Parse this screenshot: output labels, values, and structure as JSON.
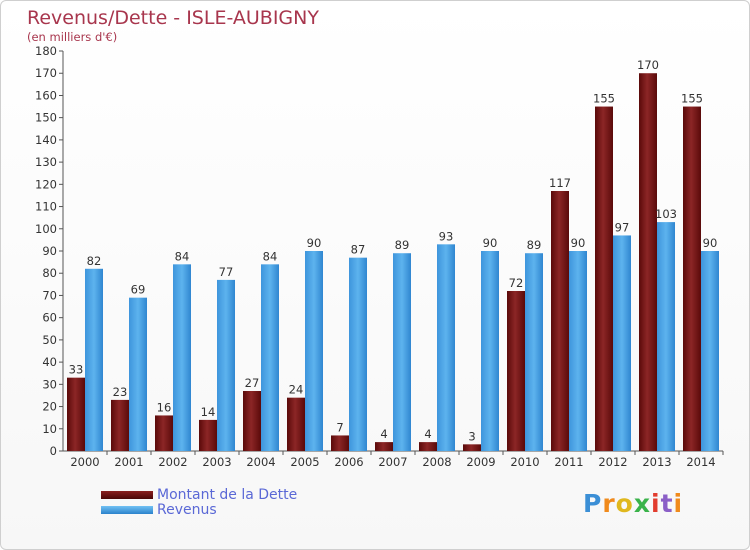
{
  "header": {
    "title": "Revenus/Dette - ISLE-AUBIGNY",
    "subtitle": "(en milliers d'€)"
  },
  "legend": {
    "debt_label": "Montant de la Dette",
    "revenue_label": "Revenus"
  },
  "logo": {
    "letters": [
      "P",
      "r",
      "o",
      "x",
      "i",
      "t",
      "i"
    ]
  },
  "colors": {
    "debt_top": "#8a1f1f",
    "debt_bottom": "#4a0606",
    "revenue_top": "#72c1f4",
    "revenue_bottom": "#2b82cc",
    "title": "#a8364d",
    "legend_text": "#5a68d6"
  },
  "chart_data": {
    "type": "bar",
    "title": "Revenus/Dette - ISLE-AUBIGNY",
    "subtitle": "(en milliers d'€)",
    "categories": [
      "2000",
      "2001",
      "2002",
      "2003",
      "2004",
      "2005",
      "2006",
      "2007",
      "2008",
      "2009",
      "2010",
      "2011",
      "2012",
      "2013",
      "2014"
    ],
    "series": [
      {
        "name": "Montant de la Dette",
        "values": [
          33,
          23,
          16,
          14,
          27,
          24,
          7,
          4,
          4,
          3,
          72,
          117,
          155,
          170,
          155
        ]
      },
      {
        "name": "Revenus",
        "values": [
          82,
          69,
          84,
          77,
          84,
          90,
          87,
          89,
          93,
          90,
          89,
          90,
          97,
          103,
          90
        ]
      }
    ],
    "ylim": [
      0,
      180
    ],
    "yticks": [
      0,
      10,
      20,
      30,
      40,
      50,
      60,
      70,
      80,
      90,
      100,
      110,
      120,
      130,
      140,
      150,
      160,
      170,
      180
    ],
    "grid": false,
    "legend_position": "bottom-left"
  }
}
